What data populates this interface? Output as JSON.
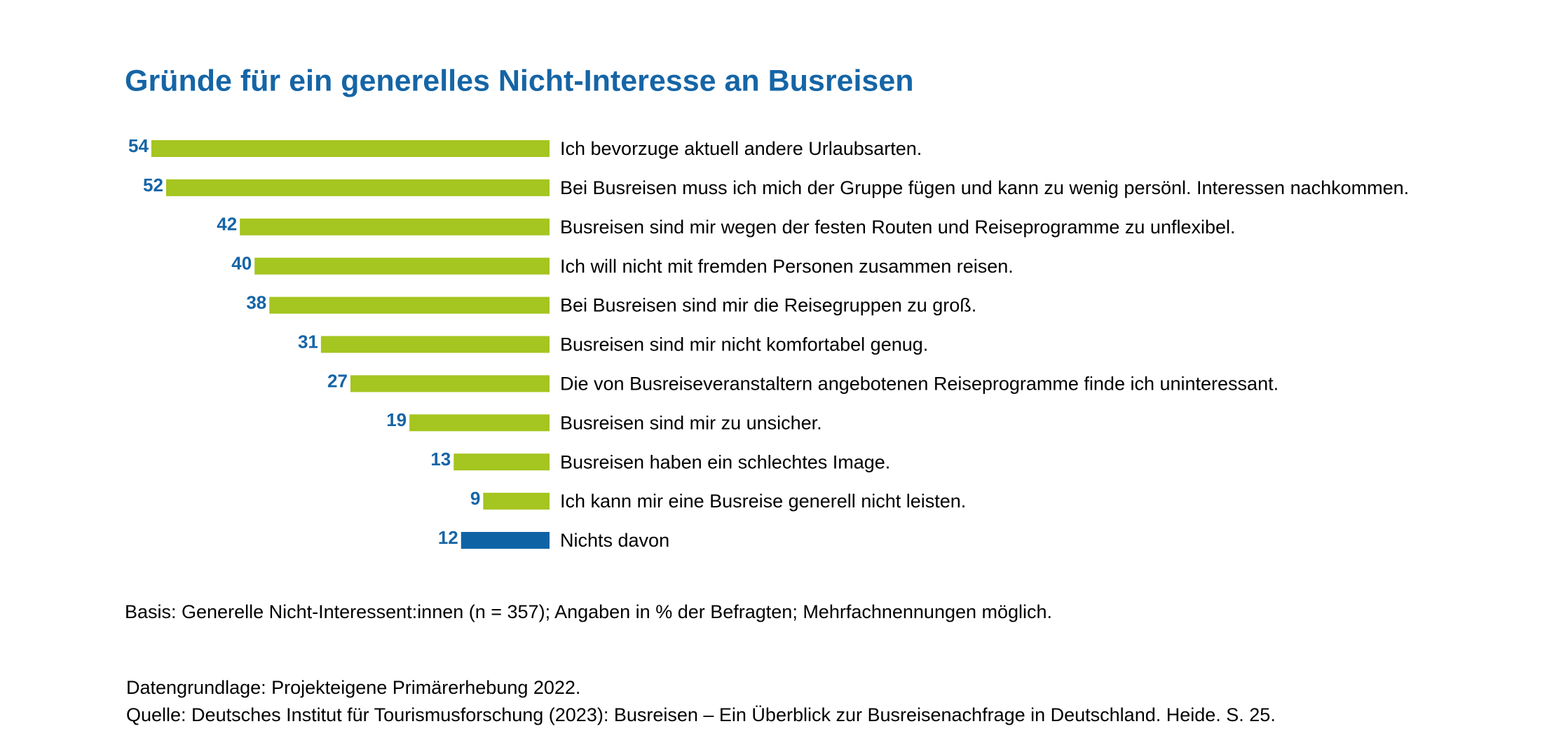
{
  "chart_data": {
    "type": "bar",
    "orientation": "horizontal",
    "title": "Gründe für ein generelles Nicht-Interesse an Busreisen",
    "categories": [
      "Ich bevorzuge aktuell andere Urlaubsarten.",
      "Bei Busreisen muss ich mich der Gruppe fügen und kann zu wenig persönl. Interessen nachkommen.",
      "Busreisen sind mir wegen der festen Routen und Reiseprogramme zu unflexibel.",
      "Ich will nicht mit fremden Personen zusammen reisen.",
      "Bei Busreisen sind mir die Reisegruppen zu groß.",
      "Busreisen sind mir nicht komfortabel genug.",
      "Die von Busreiseveranstaltern angebotenen Reiseprogramme finde ich uninteressant.",
      "Busreisen sind mir zu unsicher.",
      "Busreisen haben ein schlechtes Image.",
      "Ich kann mir eine Busreise generell nicht leisten.",
      "Nichts davon"
    ],
    "values": [
      54,
      52,
      42,
      40,
      38,
      31,
      27,
      19,
      13,
      9,
      12
    ],
    "colors": [
      "#a5c520",
      "#a5c520",
      "#a5c520",
      "#a5c520",
      "#a5c520",
      "#a5c520",
      "#a5c520",
      "#a5c520",
      "#a5c520",
      "#a5c520",
      "#0f63a5"
    ],
    "note": "Basis: Generelle Nicht-Interessent:innen (n = 357); Angaben in % der Befragten; Mehrfachnennungen möglich.",
    "source_lines": [
      "Datengrundlage: Projekteigene Primärerhebung 2022.",
      "Quelle: Deutsches Institut für Tourismusforschung (2023): Busreisen – Ein Überblick zur Busreisenachfrage in Deutschland. Heide. S. 25."
    ]
  }
}
